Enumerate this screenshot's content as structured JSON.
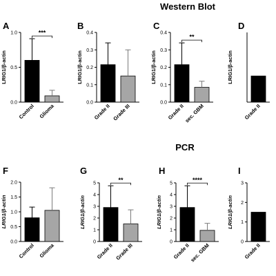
{
  "sections": [
    {
      "title": "Western Blot"
    },
    {
      "title": "PCR"
    }
  ],
  "colors": {
    "dark": "#000000",
    "gray": "#a6a6a6"
  },
  "chart_data": [
    {
      "type": "bar",
      "panel": "A",
      "section": 0,
      "ylabel": "LRIG1/β-actin",
      "ylabel_style": "normal",
      "ylim": [
        0,
        1.0
      ],
      "yticks": [
        "0.0",
        "0.5",
        "1.0"
      ],
      "ytick_values": [
        0,
        0.5,
        1.0
      ],
      "categories": [
        "Control",
        "Glioma"
      ],
      "values": [
        0.6,
        0.09
      ],
      "errors": [
        0.31,
        0.08
      ],
      "significance": "***"
    },
    {
      "type": "bar",
      "panel": "B",
      "section": 0,
      "ylabel": "LRIG1/β-actin",
      "ylabel_style": "normal",
      "ylim": [
        0,
        0.4
      ],
      "yticks": [
        "0.0",
        "0.1",
        "0.2",
        "0.3",
        "0.4"
      ],
      "ytick_values": [
        0,
        0.1,
        0.2,
        0.3,
        0.4
      ],
      "categories": [
        "Grade II",
        "Grade III"
      ],
      "values": [
        0.215,
        0.15
      ],
      "errors": [
        0.125,
        0.15
      ],
      "significance": ""
    },
    {
      "type": "bar",
      "panel": "C",
      "section": 0,
      "ylabel": "LRIG1/β-actin",
      "ylabel_style": "normal",
      "ylim": [
        0,
        0.4
      ],
      "yticks": [
        "0.0",
        "0.1",
        "0.2",
        "0.3",
        "0.4"
      ],
      "ytick_values": [
        0,
        0.1,
        0.2,
        0.3,
        0.4
      ],
      "categories": [
        "Grade II",
        "sec. GBM"
      ],
      "values": [
        0.215,
        0.085
      ],
      "errors": [
        0.125,
        0.035
      ],
      "significance": "**"
    },
    {
      "type": "bar",
      "panel": "D",
      "section": 0,
      "ylabel": "LRIG1/β-actin",
      "ylabel_style": "normal",
      "ylim": [
        0,
        0.4
      ],
      "yticks": [],
      "ytick_values": [],
      "categories": [
        "Grade II"
      ],
      "values": [
        0.15
      ],
      "errors": [
        0
      ],
      "significance": ""
    },
    {
      "type": "bar",
      "panel": "F",
      "section": 1,
      "ylabel": "LRIG1/β-actin",
      "ylabel_style": "italic",
      "ylim": [
        0,
        2.0
      ],
      "yticks": [
        "0.0",
        "0.5",
        "1.0",
        "1.5",
        "2.0"
      ],
      "ytick_values": [
        0,
        0.5,
        1.0,
        1.5,
        2.0
      ],
      "categories": [
        "Control",
        "Glioma"
      ],
      "values": [
        0.8,
        1.05
      ],
      "errors": [
        0.36,
        0.76
      ],
      "significance": ""
    },
    {
      "type": "bar",
      "panel": "G",
      "section": 1,
      "ylabel": "LRIG1/β-actin",
      "ylabel_style": "italic",
      "ylim": [
        0,
        5
      ],
      "yticks": [
        "0",
        "1",
        "2",
        "3",
        "4",
        "5"
      ],
      "ytick_values": [
        0,
        1,
        2,
        3,
        4,
        5
      ],
      "categories": [
        "Grade II",
        "Grade III"
      ],
      "values": [
        2.9,
        1.5
      ],
      "errors": [
        1.85,
        1.2
      ],
      "significance": "**"
    },
    {
      "type": "bar",
      "panel": "H",
      "section": 1,
      "ylabel": "LRIG1/β-actin",
      "ylabel_style": "italic",
      "ylim": [
        0,
        5
      ],
      "yticks": [
        "0",
        "1",
        "2",
        "3",
        "4",
        "5"
      ],
      "ytick_values": [
        0,
        1,
        2,
        3,
        4,
        5
      ],
      "categories": [
        "Grade II",
        "sec. GBM"
      ],
      "values": [
        2.9,
        0.95
      ],
      "errors": [
        1.85,
        0.6
      ],
      "significance": "****"
    },
    {
      "type": "bar",
      "panel": "I",
      "section": 1,
      "ylabel": "LRIG1/β-actin",
      "ylabel_style": "italic",
      "ylim": [
        0,
        3
      ],
      "yticks": [
        "0",
        "1",
        "2",
        "3"
      ],
      "ytick_values": [
        0,
        1,
        2,
        3
      ],
      "categories": [
        "Grade II"
      ],
      "values": [
        1.5
      ],
      "errors": [
        0
      ],
      "significance": ""
    }
  ]
}
